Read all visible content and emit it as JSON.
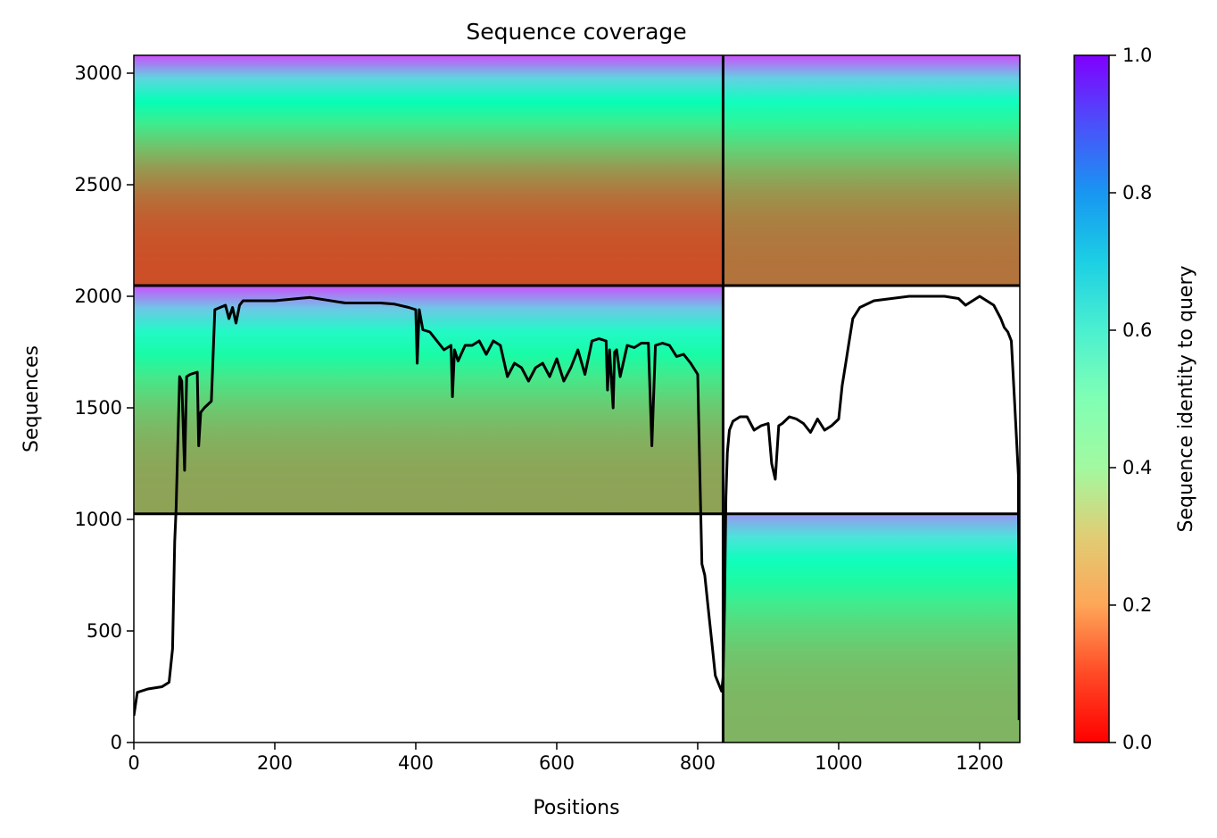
{
  "chart_data": {
    "type": "heatmap",
    "title": "Sequence coverage",
    "xlabel": "Positions",
    "ylabel": "Sequences",
    "xlim": [
      0,
      1257
    ],
    "ylim": [
      0,
      3080
    ],
    "xticks": [
      0,
      200,
      400,
      600,
      800,
      1000,
      1200
    ],
    "yticks": [
      0,
      500,
      1000,
      1500,
      2000,
      2500,
      3000
    ],
    "grid": false,
    "colorbar": {
      "label": "Sequence identity to query",
      "colormap": "rainbow_r",
      "range": [
        0,
        1
      ],
      "ticks": [
        "0.0",
        "0.2",
        "0.4",
        "0.6",
        "0.8",
        "1.0"
      ]
    },
    "chain_boundaries_x": [
      836
    ],
    "block_boundaries_y": [
      1025,
      2048
    ],
    "blocks": [
      {
        "rows": [
          2048,
          3080
        ],
        "x": [
          0,
          836
        ],
        "identity_bottom": 0.1,
        "identity_top": 0.9
      },
      {
        "rows": [
          2048,
          3080
        ],
        "x": [
          836,
          1257
        ],
        "identity_bottom": 0.15,
        "identity_top": 0.9
      },
      {
        "rows": [
          1025,
          2048
        ],
        "x": [
          0,
          836
        ],
        "identity_bottom": 0.22,
        "identity_top": 0.9
      },
      {
        "rows": [
          0,
          1025
        ],
        "x": [
          836,
          1257
        ],
        "identity_bottom": 0.25,
        "identity_top": 0.8
      }
    ],
    "coverage_line": {
      "color": "#000000",
      "x": [
        0,
        5,
        20,
        40,
        50,
        55,
        58,
        60,
        65,
        68,
        72,
        75,
        80,
        90,
        92,
        95,
        100,
        110,
        115,
        130,
        135,
        140,
        145,
        150,
        155,
        200,
        250,
        300,
        350,
        370,
        390,
        400,
        402,
        405,
        410,
        420,
        430,
        440,
        450,
        452,
        455,
        460,
        470,
        480,
        490,
        500,
        510,
        520,
        530,
        540,
        550,
        560,
        570,
        580,
        590,
        600,
        610,
        620,
        630,
        640,
        650,
        660,
        670,
        672,
        675,
        680,
        682,
        685,
        690,
        700,
        710,
        720,
        730,
        735,
        740,
        750,
        760,
        770,
        780,
        790,
        800,
        803,
        806,
        810,
        815,
        820,
        825,
        830,
        834,
        836,
        838,
        840,
        842,
        845,
        850,
        860,
        870,
        880,
        890,
        900,
        905,
        910,
        915,
        920,
        930,
        940,
        950,
        960,
        970,
        980,
        990,
        1000,
        1005,
        1010,
        1015,
        1020,
        1030,
        1050,
        1100,
        1150,
        1170,
        1180,
        1190,
        1200,
        1210,
        1220,
        1230,
        1235,
        1240,
        1245,
        1250,
        1255,
        1256
      ],
      "y": [
        120,
        225,
        240,
        250,
        270,
        420,
        900,
        1050,
        1640,
        1620,
        1220,
        1640,
        1650,
        1660,
        1330,
        1480,
        1500,
        1530,
        1940,
        1960,
        1900,
        1950,
        1880,
        1960,
        1980,
        1980,
        1995,
        1970,
        1970,
        1965,
        1950,
        1940,
        1700,
        1940,
        1850,
        1840,
        1800,
        1760,
        1780,
        1550,
        1760,
        1710,
        1780,
        1780,
        1800,
        1740,
        1800,
        1780,
        1640,
        1700,
        1680,
        1620,
        1680,
        1700,
        1640,
        1720,
        1620,
        1680,
        1760,
        1650,
        1800,
        1810,
        1800,
        1580,
        1760,
        1500,
        1750,
        1760,
        1640,
        1780,
        1770,
        1790,
        1790,
        1330,
        1780,
        1790,
        1780,
        1730,
        1740,
        1700,
        1650,
        1200,
        800,
        750,
        600,
        450,
        300,
        260,
        230,
        290,
        600,
        1100,
        1300,
        1400,
        1440,
        1460,
        1460,
        1400,
        1420,
        1430,
        1250,
        1180,
        1420,
        1430,
        1460,
        1450,
        1430,
        1390,
        1450,
        1400,
        1420,
        1450,
        1600,
        1700,
        1800,
        1900,
        1950,
        1980,
        2000,
        2000,
        1990,
        1960,
        1980,
        2000,
        1980,
        1960,
        1900,
        1860,
        1840,
        1800,
        1500,
        1200,
        100
      ]
    }
  }
}
